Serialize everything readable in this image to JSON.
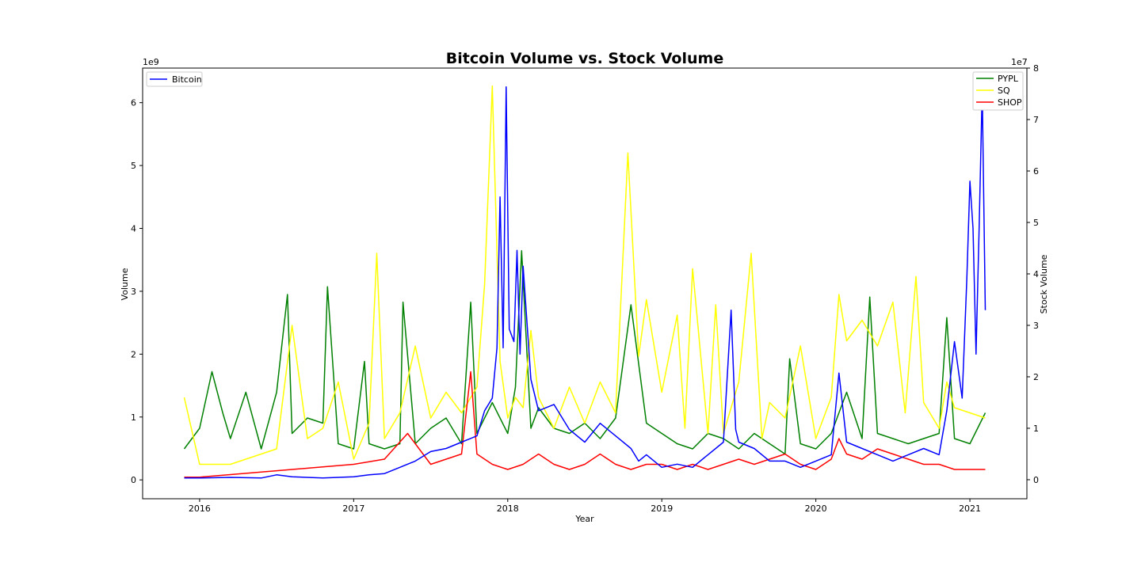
{
  "chart_data": {
    "type": "line",
    "title": "Bitcoin Volume vs. Stock Volume",
    "xlabel": "Year",
    "ylabel": "Volume",
    "y2label": "Stock Volume",
    "y_scale_label": "1e9",
    "y2_scale_label": "1e7",
    "xlim": [
      2015.63,
      2021.37
    ],
    "ylim": [
      -0.3,
      6.55
    ],
    "y2lim": [
      -0.37,
      8.0
    ],
    "x_ticks": [
      {
        "value": 2016,
        "label": "2016"
      },
      {
        "value": 2017,
        "label": "2017"
      },
      {
        "value": 2018,
        "label": "2018"
      },
      {
        "value": 2019,
        "label": "2019"
      },
      {
        "value": 2020,
        "label": "2020"
      },
      {
        "value": 2021,
        "label": "2021"
      }
    ],
    "y_ticks": [
      {
        "value": 0,
        "label": "0"
      },
      {
        "value": 1,
        "label": "1"
      },
      {
        "value": 2,
        "label": "2"
      },
      {
        "value": 3,
        "label": "3"
      },
      {
        "value": 4,
        "label": "4"
      },
      {
        "value": 5,
        "label": "5"
      },
      {
        "value": 6,
        "label": "6"
      }
    ],
    "y2_ticks": [
      {
        "value": 0,
        "label": "0"
      },
      {
        "value": 1,
        "label": "1"
      },
      {
        "value": 2,
        "label": "2"
      },
      {
        "value": 3,
        "label": "3"
      },
      {
        "value": 4,
        "label": "4"
      },
      {
        "value": 5,
        "label": "5"
      },
      {
        "value": 6,
        "label": "6"
      },
      {
        "value": 7,
        "label": "7"
      },
      {
        "value": 8,
        "label": "8"
      }
    ],
    "legend_left": {
      "placement": "top-left",
      "entries": [
        {
          "name": "Bitcoin",
          "color": "#0000ff"
        }
      ]
    },
    "legend_right": {
      "placement": "top-right",
      "entries": [
        {
          "name": "PYPL",
          "color": "#008000"
        },
        {
          "name": "SQ",
          "color": "#ffff00"
        },
        {
          "name": "SHOP",
          "color": "#ff0000"
        }
      ]
    },
    "series": [
      {
        "name": "Bitcoin",
        "axis": "left",
        "color": "#0000ff",
        "x": [
          2015.9,
          2016.0,
          2016.2,
          2016.4,
          2016.5,
          2016.6,
          2016.8,
          2017.0,
          2017.1,
          2017.2,
          2017.3,
          2017.4,
          2017.5,
          2017.6,
          2017.7,
          2017.75,
          2017.8,
          2017.85,
          2017.9,
          2017.93,
          2017.95,
          2017.97,
          2017.99,
          2018.01,
          2018.04,
          2018.06,
          2018.08,
          2018.1,
          2018.15,
          2018.2,
          2018.3,
          2018.4,
          2018.5,
          2018.6,
          2018.7,
          2018.8,
          2018.85,
          2018.9,
          2019.0,
          2019.1,
          2019.2,
          2019.3,
          2019.4,
          2019.45,
          2019.48,
          2019.5,
          2019.6,
          2019.7,
          2019.8,
          2019.9,
          2020.0,
          2020.1,
          2020.15,
          2020.2,
          2020.3,
          2020.4,
          2020.5,
          2020.6,
          2020.7,
          2020.8,
          2020.85,
          2020.9,
          2020.95,
          2020.98,
          2021.0,
          2021.02,
          2021.04,
          2021.06,
          2021.08,
          2021.1
        ],
        "values": [
          0.03,
          0.03,
          0.04,
          0.03,
          0.08,
          0.05,
          0.03,
          0.05,
          0.08,
          0.1,
          0.2,
          0.3,
          0.45,
          0.5,
          0.6,
          0.65,
          0.7,
          1.1,
          1.3,
          2.1,
          4.5,
          2.1,
          6.25,
          2.4,
          2.2,
          3.65,
          2.0,
          3.4,
          1.6,
          1.1,
          1.2,
          0.8,
          0.6,
          0.9,
          0.7,
          0.5,
          0.3,
          0.4,
          0.2,
          0.25,
          0.2,
          0.4,
          0.6,
          2.7,
          0.8,
          0.6,
          0.5,
          0.3,
          0.3,
          0.2,
          0.3,
          0.4,
          1.7,
          0.6,
          0.5,
          0.4,
          0.3,
          0.4,
          0.5,
          0.4,
          1.1,
          2.2,
          1.3,
          3.2,
          4.75,
          4.0,
          2.0,
          4.0,
          6.2,
          2.7
        ]
      },
      {
        "name": "PYPL",
        "axis": "right",
        "color": "#008000",
        "x": [
          2015.9,
          2016.0,
          2016.08,
          2016.15,
          2016.2,
          2016.3,
          2016.4,
          2016.5,
          2016.57,
          2016.6,
          2016.7,
          2016.8,
          2016.83,
          2016.9,
          2017.0,
          2017.07,
          2017.1,
          2017.2,
          2017.3,
          2017.32,
          2017.4,
          2017.5,
          2017.6,
          2017.7,
          2017.76,
          2017.8,
          2017.9,
          2018.0,
          2018.05,
          2018.09,
          2018.15,
          2018.2,
          2018.3,
          2018.4,
          2018.5,
          2018.6,
          2018.7,
          2018.8,
          2018.9,
          2019.0,
          2019.1,
          2019.2,
          2019.3,
          2019.4,
          2019.5,
          2019.6,
          2019.7,
          2019.8,
          2019.83,
          2019.9,
          2020.0,
          2020.1,
          2020.2,
          2020.3,
          2020.35,
          2020.4,
          2020.5,
          2020.6,
          2020.7,
          2020.8,
          2020.85,
          2020.9,
          2021.0,
          2021.1
        ],
        "values": [
          0.6,
          1.0,
          2.1,
          1.3,
          0.8,
          1.7,
          0.6,
          1.7,
          3.6,
          0.9,
          1.2,
          1.1,
          3.75,
          0.7,
          0.6,
          2.3,
          0.7,
          0.6,
          0.7,
          3.45,
          0.7,
          1.0,
          1.2,
          0.7,
          3.45,
          0.9,
          1.5,
          0.9,
          1.8,
          4.45,
          1.0,
          1.4,
          1.0,
          0.9,
          1.1,
          0.8,
          1.2,
          3.4,
          1.1,
          0.9,
          0.7,
          0.6,
          0.9,
          0.8,
          0.6,
          0.9,
          0.7,
          0.5,
          2.35,
          0.7,
          0.6,
          0.9,
          1.7,
          0.8,
          3.55,
          0.9,
          0.8,
          0.7,
          0.8,
          0.9,
          3.15,
          0.8,
          0.7,
          1.3
        ]
      },
      {
        "name": "SQ",
        "axis": "right",
        "color": "#ffff00",
        "x": [
          2015.9,
          2016.0,
          2016.2,
          2016.4,
          2016.5,
          2016.6,
          2016.7,
          2016.8,
          2016.9,
          2017.0,
          2017.1,
          2017.15,
          2017.2,
          2017.3,
          2017.4,
          2017.5,
          2017.6,
          2017.7,
          2017.8,
          2017.85,
          2017.9,
          2017.95,
          2018.0,
          2018.05,
          2018.1,
          2018.15,
          2018.2,
          2018.3,
          2018.4,
          2018.5,
          2018.6,
          2018.7,
          2018.78,
          2018.85,
          2018.9,
          2019.0,
          2019.1,
          2019.15,
          2019.2,
          2019.3,
          2019.35,
          2019.4,
          2019.5,
          2019.58,
          2019.65,
          2019.7,
          2019.8,
          2019.9,
          2020.0,
          2020.1,
          2020.15,
          2020.2,
          2020.3,
          2020.4,
          2020.5,
          2020.58,
          2020.65,
          2020.7,
          2020.8,
          2020.85,
          2020.9,
          2021.0,
          2021.1
        ],
        "values": [
          1.6,
          0.3,
          0.3,
          0.5,
          0.6,
          3.0,
          0.8,
          1.0,
          1.9,
          0.4,
          1.1,
          4.4,
          0.8,
          1.3,
          2.6,
          1.2,
          1.7,
          1.3,
          1.8,
          3.8,
          7.65,
          2.3,
          1.2,
          1.6,
          1.4,
          2.9,
          1.6,
          1.0,
          1.8,
          1.1,
          1.9,
          1.3,
          6.35,
          2.4,
          3.5,
          1.7,
          3.2,
          1.0,
          4.1,
          0.9,
          3.4,
          0.9,
          1.9,
          4.4,
          0.8,
          1.5,
          1.2,
          2.6,
          0.8,
          1.6,
          3.6,
          2.7,
          3.1,
          2.6,
          3.45,
          1.3,
          3.95,
          1.5,
          1.0,
          1.9,
          1.4,
          1.3,
          1.2
        ]
      },
      {
        "name": "SHOP",
        "axis": "right",
        "color": "#ff0000",
        "x": [
          2015.9,
          2016.0,
          2016.2,
          2016.4,
          2016.6,
          2016.8,
          2017.0,
          2017.2,
          2017.35,
          2017.5,
          2017.6,
          2017.7,
          2017.76,
          2017.8,
          2017.9,
          2018.0,
          2018.1,
          2018.2,
          2018.3,
          2018.4,
          2018.5,
          2018.6,
          2018.7,
          2018.8,
          2018.9,
          2019.0,
          2019.1,
          2019.2,
          2019.3,
          2019.4,
          2019.5,
          2019.6,
          2019.7,
          2019.8,
          2019.9,
          2020.0,
          2020.1,
          2020.15,
          2020.2,
          2020.3,
          2020.4,
          2020.5,
          2020.6,
          2020.7,
          2020.8,
          2020.9,
          2021.0,
          2021.1
        ],
        "values": [
          0.05,
          0.05,
          0.1,
          0.15,
          0.2,
          0.25,
          0.3,
          0.4,
          0.9,
          0.3,
          0.4,
          0.5,
          2.1,
          0.5,
          0.3,
          0.2,
          0.3,
          0.5,
          0.3,
          0.2,
          0.3,
          0.5,
          0.3,
          0.2,
          0.3,
          0.3,
          0.2,
          0.3,
          0.2,
          0.3,
          0.4,
          0.3,
          0.4,
          0.5,
          0.3,
          0.2,
          0.4,
          0.8,
          0.5,
          0.4,
          0.6,
          0.5,
          0.4,
          0.3,
          0.3,
          0.2,
          0.2,
          0.2
        ]
      }
    ]
  }
}
